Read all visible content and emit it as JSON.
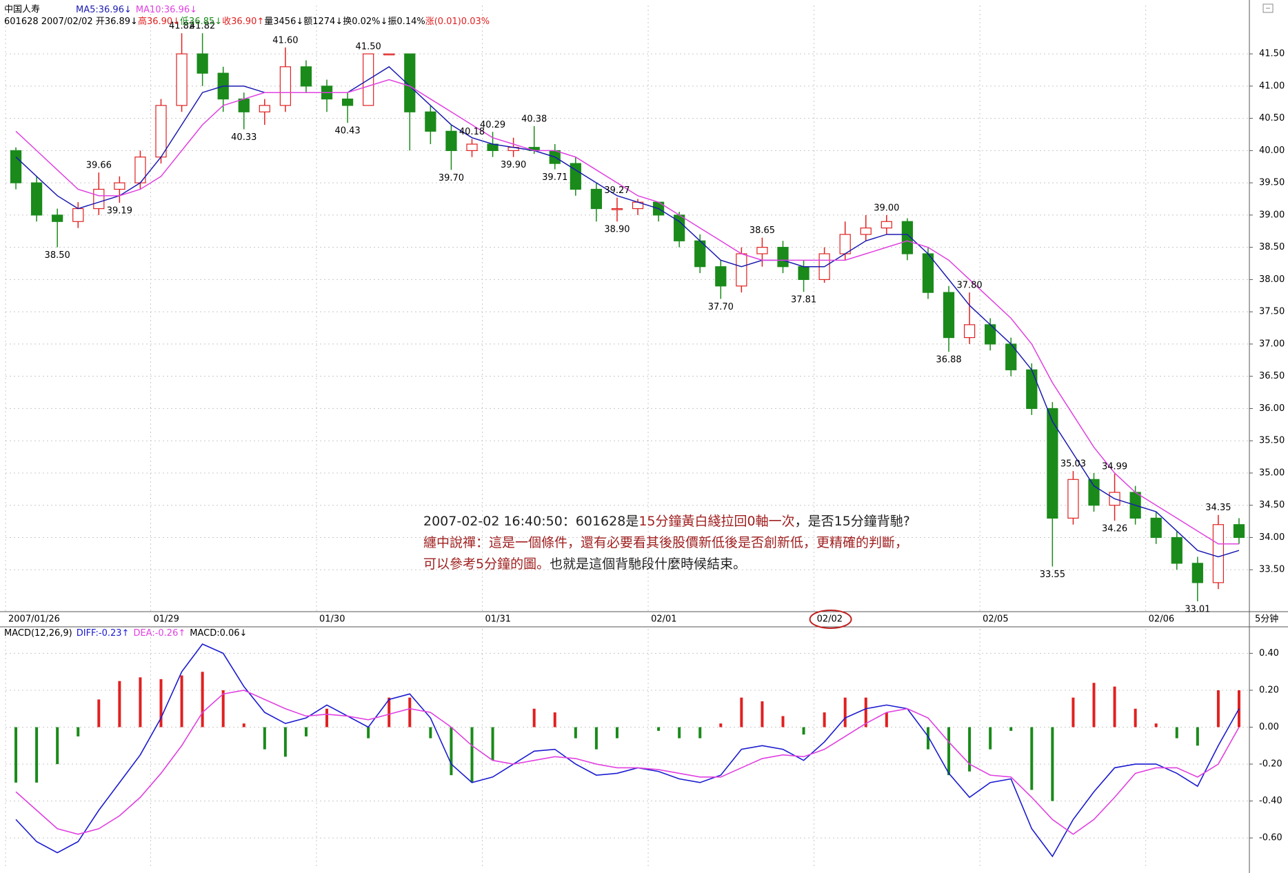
{
  "chart_data": [
    {
      "type": "candlestick",
      "title": "中国人寿",
      "subtitle": [
        {
          "text": "601628 2007/02/02 开36.89↓",
          "color": "#000000"
        },
        {
          "text": "高36.90↓",
          "color": "#e02020"
        },
        {
          "text": "低36.85↓",
          "color": "#1a8a1a"
        },
        {
          "text": "收36.90↑",
          "color": "#e02020"
        },
        {
          "text": "量3456↓额1274↓换0.02%↓振0.14%",
          "color": "#000000"
        },
        {
          "text": "涨(0.01)0.03%",
          "color": "#e02020"
        }
      ],
      "categories": [
        "2007/01/26",
        null,
        null,
        null,
        null,
        null,
        null,
        "01/29",
        null,
        null,
        null,
        null,
        null,
        null,
        null,
        "01/30",
        null,
        null,
        null,
        null,
        null,
        null,
        null,
        "01/31",
        null,
        null,
        null,
        null,
        null,
        null,
        null,
        "02/01",
        null,
        null,
        null,
        null,
        null,
        null,
        null,
        "02/02",
        null,
        null,
        null,
        null,
        null,
        null,
        null,
        "02/05",
        null,
        null,
        null,
        null,
        null,
        null,
        null,
        "02/06",
        null,
        null,
        null,
        null
      ],
      "highlighted_category": "02/02",
      "period": "5分钟",
      "open": [
        40.0,
        39.5,
        39.0,
        38.9,
        39.1,
        39.4,
        39.5,
        39.9,
        40.7,
        41.5,
        41.2,
        40.8,
        40.6,
        40.7,
        41.3,
        41.0,
        40.8,
        40.7,
        41.5,
        41.5,
        40.6,
        40.3,
        40.0,
        40.1,
        40.0,
        40.05,
        40.0,
        39.8,
        39.4,
        39.1,
        39.1,
        39.2,
        39.0,
        38.6,
        38.2,
        37.9,
        38.4,
        38.5,
        38.2,
        38.0,
        38.4,
        38.7,
        38.8,
        38.9,
        38.4,
        37.8,
        37.1,
        37.3,
        37.0,
        36.6,
        36.0,
        34.3,
        34.9,
        34.5,
        34.7,
        34.3,
        34.0,
        33.6,
        33.3,
        34.2
      ],
      "high": [
        40.05,
        39.6,
        39.1,
        39.2,
        39.66,
        39.6,
        40.0,
        40.8,
        41.82,
        41.82,
        41.3,
        40.9,
        40.8,
        41.6,
        41.4,
        41.1,
        40.9,
        41.5,
        41.5,
        41.5,
        40.7,
        40.4,
        40.18,
        40.29,
        40.2,
        40.38,
        40.1,
        39.9,
        39.5,
        39.27,
        39.25,
        39.2,
        39.05,
        38.7,
        38.3,
        38.5,
        38.65,
        38.6,
        38.3,
        38.5,
        38.9,
        39.0,
        39.0,
        38.95,
        38.5,
        37.9,
        37.8,
        37.4,
        37.1,
        36.7,
        36.1,
        35.03,
        35.0,
        34.99,
        34.8,
        34.4,
        34.1,
        33.7,
        34.35,
        34.3
      ],
      "low": [
        39.4,
        38.9,
        38.5,
        38.8,
        39.0,
        39.19,
        39.4,
        39.8,
        40.6,
        41.0,
        40.6,
        40.33,
        40.4,
        40.6,
        40.9,
        40.6,
        40.43,
        40.7,
        41.5,
        40.0,
        40.1,
        39.7,
        39.9,
        39.9,
        39.9,
        39.95,
        39.71,
        39.3,
        38.9,
        38.9,
        39.0,
        38.9,
        38.5,
        38.1,
        37.7,
        37.8,
        38.2,
        38.1,
        37.81,
        37.95,
        38.3,
        38.6,
        38.7,
        38.3,
        37.7,
        36.88,
        37.0,
        36.9,
        36.5,
        35.9,
        33.55,
        34.2,
        34.4,
        34.26,
        34.2,
        33.9,
        33.5,
        33.01,
        33.2,
        33.9
      ],
      "close": [
        39.5,
        39.0,
        38.9,
        39.1,
        39.4,
        39.5,
        39.9,
        40.7,
        41.5,
        41.2,
        40.8,
        40.6,
        40.7,
        41.3,
        41.0,
        40.8,
        40.7,
        41.5,
        41.5,
        40.6,
        40.3,
        40.0,
        40.1,
        40.0,
        40.05,
        40.0,
        39.8,
        39.4,
        39.1,
        39.1,
        39.2,
        39.0,
        38.6,
        38.2,
        37.9,
        38.4,
        38.5,
        38.2,
        38.0,
        38.4,
        38.7,
        38.8,
        38.9,
        38.4,
        37.8,
        37.1,
        37.3,
        37.0,
        36.6,
        36.0,
        34.3,
        34.9,
        34.5,
        34.7,
        34.3,
        34.0,
        33.6,
        33.3,
        34.2,
        34.0
      ],
      "high_labels": [
        null,
        null,
        null,
        null,
        "39.66",
        null,
        null,
        null,
        "41.82",
        "41.82",
        null,
        null,
        null,
        "41.60",
        null,
        null,
        null,
        "41.50",
        null,
        null,
        null,
        null,
        "40.18",
        "40.29",
        null,
        "40.38",
        null,
        null,
        null,
        "39.27",
        null,
        null,
        null,
        null,
        null,
        null,
        "38.65",
        null,
        null,
        null,
        null,
        null,
        "39.00",
        null,
        null,
        null,
        "37.80",
        null,
        null,
        null,
        null,
        "35.03",
        null,
        "34.99",
        null,
        null,
        null,
        null,
        "34.35",
        null
      ],
      "low_labels": [
        null,
        null,
        "38.50",
        null,
        null,
        "39.19",
        null,
        null,
        null,
        null,
        null,
        "40.33",
        null,
        null,
        null,
        null,
        "40.43",
        null,
        null,
        null,
        null,
        "39.70",
        null,
        null,
        "39.90",
        null,
        "39.71",
        null,
        null,
        "38.90",
        null,
        null,
        null,
        null,
        "37.70",
        null,
        null,
        null,
        "37.81",
        null,
        null,
        null,
        null,
        null,
        null,
        "36.88",
        null,
        null,
        null,
        null,
        "33.55",
        null,
        null,
        "34.26",
        null,
        null,
        null,
        "33.01",
        null,
        null
      ],
      "up_color": "#e02020",
      "down_color": "#1a8a1a",
      "series": [
        {
          "name": "MA5:36.96↓",
          "color": "#1a1ab0",
          "values": [
            39.9,
            39.6,
            39.3,
            39.1,
            39.2,
            39.3,
            39.5,
            39.9,
            40.4,
            40.9,
            41.0,
            41.0,
            40.9,
            40.9,
            40.9,
            40.9,
            40.9,
            41.1,
            41.3,
            41.0,
            40.7,
            40.4,
            40.2,
            40.1,
            40.05,
            40.0,
            39.9,
            39.7,
            39.5,
            39.3,
            39.2,
            39.1,
            38.9,
            38.6,
            38.3,
            38.2,
            38.3,
            38.3,
            38.2,
            38.2,
            38.4,
            38.6,
            38.7,
            38.7,
            38.4,
            38.0,
            37.6,
            37.3,
            37.0,
            36.6,
            35.8,
            35.3,
            34.8,
            34.6,
            34.5,
            34.4,
            34.1,
            33.8,
            33.7,
            33.8
          ]
        },
        {
          "name": "MA10:36.96↓",
          "color": "#e040e0",
          "values": [
            40.3,
            40.0,
            39.7,
            39.4,
            39.3,
            39.3,
            39.4,
            39.6,
            40.0,
            40.4,
            40.7,
            40.8,
            40.9,
            40.9,
            40.9,
            40.9,
            40.9,
            41.0,
            41.1,
            41.0,
            40.8,
            40.6,
            40.4,
            40.2,
            40.1,
            40.0,
            40.0,
            39.9,
            39.7,
            39.5,
            39.3,
            39.2,
            39.0,
            38.8,
            38.6,
            38.4,
            38.3,
            38.3,
            38.3,
            38.3,
            38.3,
            38.4,
            38.5,
            38.6,
            38.5,
            38.3,
            38.0,
            37.7,
            37.4,
            37.0,
            36.4,
            35.9,
            35.4,
            35.0,
            34.7,
            34.5,
            34.3,
            34.1,
            33.9,
            33.9
          ]
        }
      ],
      "ylim": [
        32.85,
        42.1
      ],
      "yticks": [
        {
          "value": 33.5,
          "label": "33.50"
        },
        {
          "value": 34,
          "label": "34.00"
        },
        {
          "value": 34.5,
          "label": "34.50"
        },
        {
          "value": 35,
          "label": "35.00"
        },
        {
          "value": 35.5,
          "label": "35.50"
        },
        {
          "value": 36,
          "label": "36.00"
        },
        {
          "value": 36.5,
          "label": "36.50"
        },
        {
          "value": 37,
          "label": "37.00"
        },
        {
          "value": 37.5,
          "label": "37.50"
        },
        {
          "value": 38,
          "label": "38.00"
        },
        {
          "value": 38.5,
          "label": "38.50"
        },
        {
          "value": 39,
          "label": "39.00"
        },
        {
          "value": 39.5,
          "label": "39.50"
        },
        {
          "value": 40,
          "label": "40.00"
        },
        {
          "value": 40.5,
          "label": "40.50"
        },
        {
          "value": 41,
          "label": "41.00"
        },
        {
          "value": 41.5,
          "label": "41.50"
        }
      ],
      "grid": true
    },
    {
      "type": "macd",
      "title": "MACD(12,26,9)",
      "histogram": {
        "name": "MACD:0.06↓",
        "up_color": "#e02020",
        "down_color": "#1a8a1a",
        "values": [
          -0.3,
          -0.3,
          -0.2,
          -0.05,
          0.15,
          0.25,
          0.27,
          0.26,
          0.28,
          0.3,
          0.2,
          0.02,
          -0.12,
          -0.16,
          -0.05,
          0.1,
          0.0,
          -0.06,
          0.16,
          0.16,
          -0.06,
          -0.26,
          -0.3,
          -0.18,
          0.0,
          0.1,
          0.08,
          -0.06,
          -0.12,
          -0.06,
          0.0,
          -0.02,
          -0.06,
          -0.06,
          0.02,
          0.16,
          0.14,
          0.06,
          -0.04,
          0.08,
          0.16,
          0.16,
          0.08,
          0.0,
          -0.12,
          -0.26,
          -0.24,
          -0.12,
          -0.02,
          -0.34,
          -0.4,
          0.16,
          0.24,
          0.22,
          0.1,
          0.02,
          -0.06,
          -0.1,
          0.2,
          0.2
        ]
      },
      "series": [
        {
          "name": "DIFF:-0.23↑",
          "color": "#1a1ad0",
          "values": [
            -0.5,
            -0.62,
            -0.68,
            -0.62,
            -0.45,
            -0.3,
            -0.15,
            0.05,
            0.3,
            0.45,
            0.4,
            0.22,
            0.08,
            0.02,
            0.05,
            0.12,
            0.06,
            0.0,
            0.15,
            0.18,
            0.05,
            -0.2,
            -0.3,
            -0.27,
            -0.2,
            -0.13,
            -0.12,
            -0.2,
            -0.26,
            -0.25,
            -0.22,
            -0.24,
            -0.28,
            -0.3,
            -0.26,
            -0.12,
            -0.1,
            -0.12,
            -0.18,
            -0.08,
            0.05,
            0.1,
            0.12,
            0.1,
            -0.05,
            -0.25,
            -0.38,
            -0.3,
            -0.28,
            -0.55,
            -0.7,
            -0.5,
            -0.35,
            -0.22,
            -0.2,
            -0.2,
            -0.25,
            -0.32,
            -0.1,
            0.1
          ]
        },
        {
          "name": "DEA:-0.26↑",
          "color": "#e040e0",
          "values": [
            -0.35,
            -0.45,
            -0.55,
            -0.58,
            -0.55,
            -0.48,
            -0.38,
            -0.25,
            -0.1,
            0.08,
            0.18,
            0.2,
            0.15,
            0.1,
            0.06,
            0.07,
            0.06,
            0.04,
            0.07,
            0.1,
            0.08,
            0.0,
            -0.1,
            -0.18,
            -0.2,
            -0.18,
            -0.16,
            -0.17,
            -0.2,
            -0.22,
            -0.22,
            -0.23,
            -0.25,
            -0.27,
            -0.27,
            -0.22,
            -0.17,
            -0.15,
            -0.16,
            -0.12,
            -0.05,
            0.02,
            0.08,
            0.1,
            0.05,
            -0.08,
            -0.2,
            -0.26,
            -0.27,
            -0.38,
            -0.5,
            -0.58,
            -0.5,
            -0.38,
            -0.25,
            -0.22,
            -0.22,
            -0.27,
            -0.2,
            0.0
          ]
        }
      ],
      "ylim": [
        -0.76,
        0.48
      ],
      "yticks": [
        {
          "value": 0.4,
          "label": "0.40"
        },
        {
          "value": 0.2,
          "label": "0.20"
        },
        {
          "value": 0,
          "label": "0.00"
        },
        {
          "value": -0.2,
          "label": "-0.20"
        },
        {
          "value": -0.4,
          "label": "-0.40"
        },
        {
          "value": -0.6,
          "label": "-0.60"
        }
      ],
      "grid": true
    }
  ],
  "annotation": {
    "lines": [
      [
        {
          "text": "2007-02-02 16:40:50：601628是",
          "color": "#222222"
        },
        {
          "text": "15分鐘黃白綫拉回0軸一次",
          "color": "#a02020"
        },
        {
          "text": "，是否15分鐘背馳?",
          "color": "#222222"
        }
      ],
      [
        {
          "text": "纏中說禪：這是一個條件，還有必要看其後股價新低後是否創新低，更精確的判斷，",
          "color": "#a02020"
        }
      ],
      [
        {
          "text": "可以參考5分鐘的圖。",
          "color": "#a02020"
        },
        {
          "text": "也就是這個背馳段什麼時候結束。",
          "color": "#222222"
        }
      ]
    ]
  }
}
